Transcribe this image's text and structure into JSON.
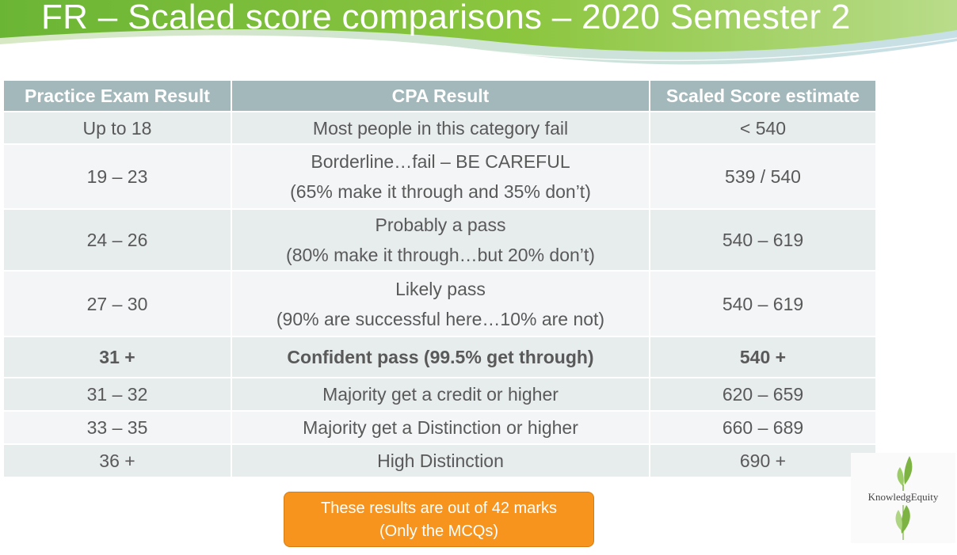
{
  "title": "FR – Scaled score comparisons – 2020 Semester 2",
  "table": {
    "headers": [
      "Practice Exam Result",
      "CPA Result",
      "Scaled Score estimate"
    ],
    "rows": [
      {
        "exam": "Up to 18",
        "cpa": [
          "Most people in this category fail"
        ],
        "score": "< 540"
      },
      {
        "exam": "19 – 23",
        "cpa": [
          "Borderline…fail – BE CAREFUL",
          "(65% make it through and 35% don’t)"
        ],
        "score": "539 / 540"
      },
      {
        "exam": "24 – 26",
        "cpa": [
          "Probably a pass",
          "(80% make it through…but 20% don’t)"
        ],
        "score": "540 – 619"
      },
      {
        "exam": "27 – 30",
        "cpa": [
          "Likely pass",
          "(90% are successful here…10% are not)"
        ],
        "score": "540 – 619"
      },
      {
        "exam": "31 +",
        "cpa": [
          "Confident pass (99.5% get through)"
        ],
        "score": "540 +"
      },
      {
        "exam": "31 – 32",
        "cpa": [
          "Majority get a credit or higher"
        ],
        "score": "620 – 659"
      },
      {
        "exam": "33 – 35",
        "cpa": [
          "Majority get a Distinction or higher"
        ],
        "score": "660 – 689"
      },
      {
        "exam": "36 +",
        "cpa": [
          "High Distinction"
        ],
        "score": "690 +"
      }
    ]
  },
  "note": {
    "line1": "These results are out of 42 marks",
    "line2": "(Only the MCQs)"
  },
  "logo": {
    "text": "KnowledgEquity"
  },
  "colors": {
    "header_green": "#7cc242",
    "table_header": "#a3b8bb",
    "highlight_text": "#1b6fb6",
    "note_orange": "#f7941d"
  }
}
